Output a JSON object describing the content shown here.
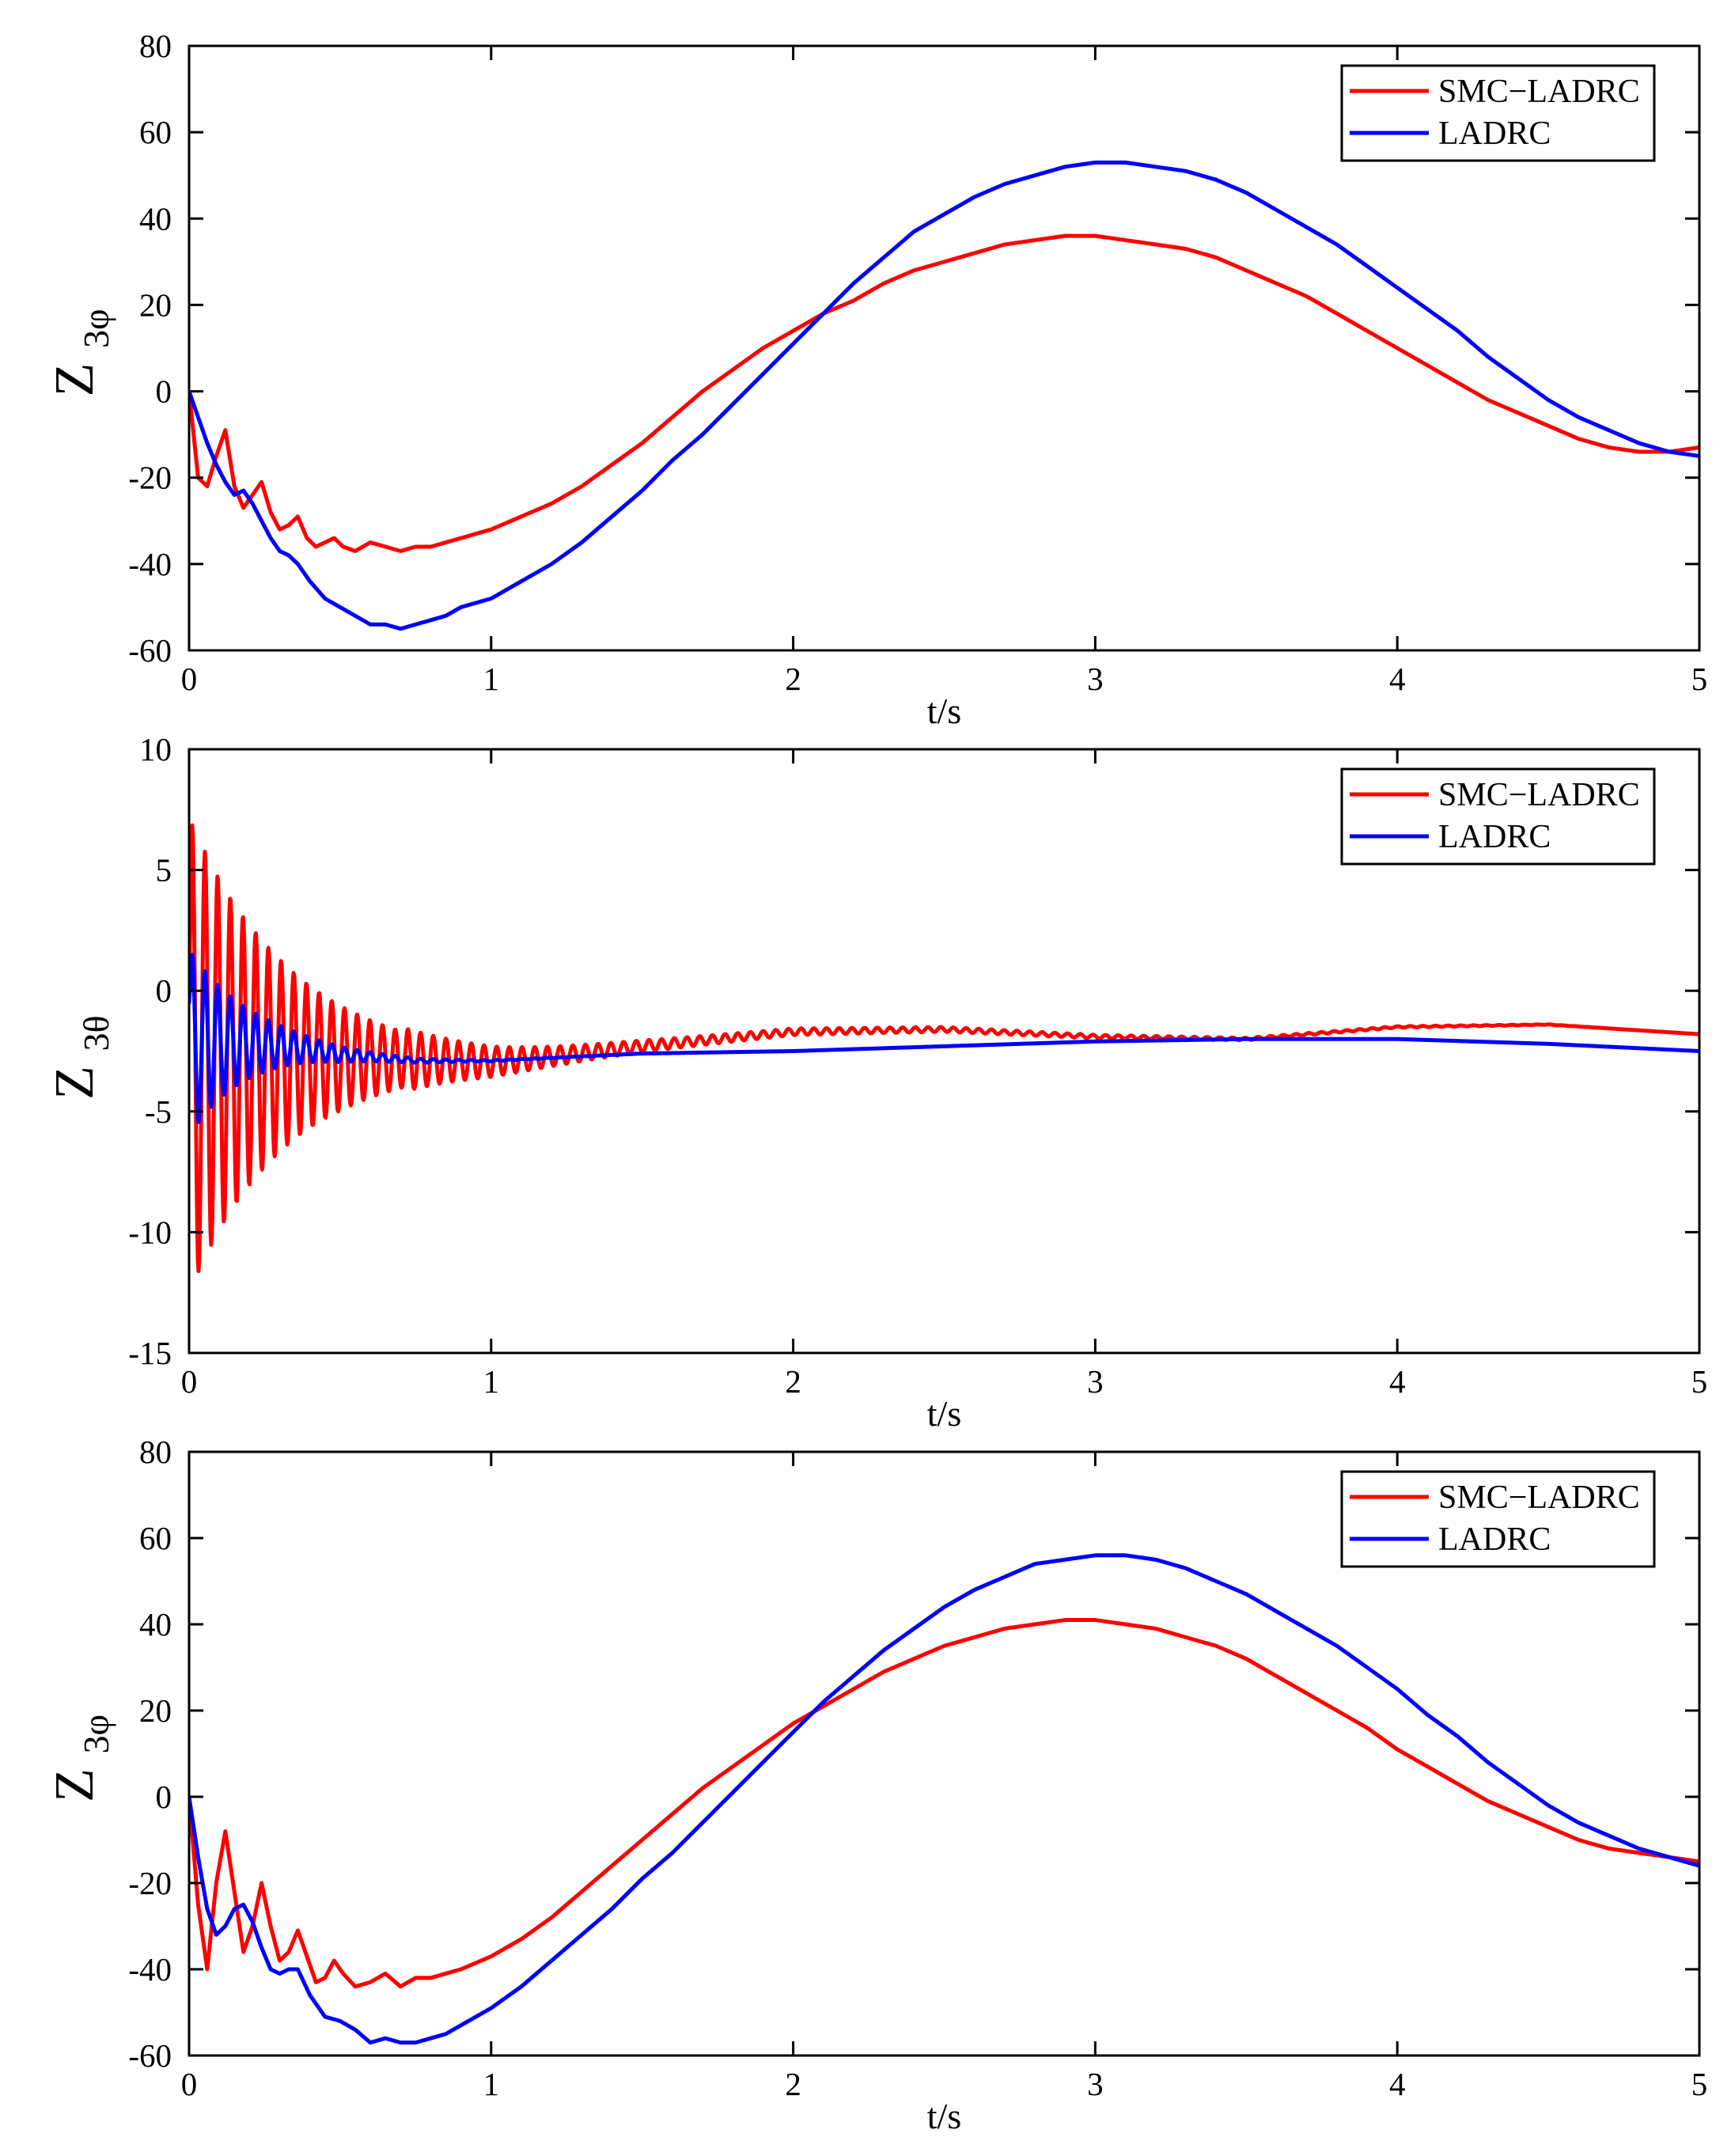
{
  "chart_data": [
    {
      "type": "line",
      "xlabel": "t/s",
      "ylabel": "Z",
      "ylabel_sub": "3φ",
      "xlim": [
        0,
        5
      ],
      "ylim": [
        -60,
        80
      ],
      "xticks": [
        "0",
        "1",
        "2",
        "3",
        "4",
        "5"
      ],
      "yticks": [
        "80",
        "60",
        "40",
        "20",
        "0",
        "-20",
        "-40",
        "-60"
      ],
      "legend": [
        "SMC−LADRC",
        "LADRC"
      ],
      "legend_position": "top-right",
      "grid": false,
      "series": [
        {
          "name": "SMC−LADRC",
          "color": "#ff0000",
          "x": [
            0,
            0.03,
            0.06,
            0.09,
            0.12,
            0.15,
            0.18,
            0.21,
            0.24,
            0.27,
            0.3,
            0.33,
            0.36,
            0.39,
            0.42,
            0.45,
            0.48,
            0.51,
            0.55,
            0.6,
            0.65,
            0.7,
            0.75,
            0.8,
            0.85,
            0.9,
            1.0,
            1.1,
            1.2,
            1.3,
            1.4,
            1.5,
            1.6,
            1.7,
            1.8,
            1.9,
            2.0,
            2.1,
            2.2,
            2.3,
            2.4,
            2.5,
            2.6,
            2.7,
            2.8,
            2.9,
            3.0,
            3.1,
            3.2,
            3.3,
            3.4,
            3.5,
            3.6,
            3.7,
            3.8,
            3.9,
            4.0,
            4.1,
            4.2,
            4.3,
            4.4,
            4.5,
            4.6,
            4.7,
            4.8,
            4.9,
            5.0
          ],
          "values": [
            0,
            -20,
            -22,
            -15,
            -9,
            -22,
            -27,
            -24,
            -21,
            -28,
            -32,
            -31,
            -29,
            -34,
            -36,
            -35,
            -34,
            -36,
            -37,
            -35,
            -36,
            -37,
            -36,
            -36,
            -35,
            -34,
            -32,
            -29,
            -26,
            -22,
            -17,
            -12,
            -6,
            0,
            5,
            10,
            14,
            18,
            21,
            25,
            28,
            30,
            32,
            34,
            35,
            36,
            36,
            35,
            34,
            33,
            31,
            28,
            25,
            22,
            18,
            14,
            10,
            6,
            2,
            -2,
            -5,
            -8,
            -11,
            -13,
            -14,
            -14,
            -13
          ]
        },
        {
          "name": "LADRC",
          "color": "#0000ff",
          "x": [
            0,
            0.03,
            0.06,
            0.09,
            0.12,
            0.15,
            0.18,
            0.21,
            0.24,
            0.27,
            0.3,
            0.33,
            0.36,
            0.4,
            0.45,
            0.5,
            0.55,
            0.6,
            0.65,
            0.7,
            0.75,
            0.8,
            0.85,
            0.9,
            1.0,
            1.1,
            1.2,
            1.3,
            1.4,
            1.5,
            1.6,
            1.7,
            1.8,
            1.9,
            2.0,
            2.1,
            2.2,
            2.3,
            2.4,
            2.5,
            2.6,
            2.7,
            2.8,
            2.9,
            3.0,
            3.1,
            3.2,
            3.3,
            3.4,
            3.5,
            3.6,
            3.7,
            3.8,
            3.9,
            4.0,
            4.1,
            4.2,
            4.3,
            4.4,
            4.5,
            4.6,
            4.7,
            4.8,
            4.9,
            5.0
          ],
          "values": [
            0,
            -6,
            -12,
            -17,
            -21,
            -24,
            -23,
            -26,
            -30,
            -34,
            -37,
            -38,
            -40,
            -44,
            -48,
            -50,
            -52,
            -54,
            -54,
            -55,
            -54,
            -53,
            -52,
            -50,
            -48,
            -44,
            -40,
            -35,
            -29,
            -23,
            -16,
            -10,
            -3,
            4,
            11,
            18,
            25,
            31,
            37,
            41,
            45,
            48,
            50,
            52,
            53,
            53,
            52,
            51,
            49,
            46,
            42,
            38,
            34,
            29,
            24,
            19,
            14,
            8,
            3,
            -2,
            -6,
            -9,
            -12,
            -14,
            -15
          ]
        }
      ]
    },
    {
      "type": "line",
      "xlabel": "t/s",
      "ylabel": "Z",
      "ylabel_sub": "3θ",
      "xlim": [
        0,
        5
      ],
      "ylim": [
        -15,
        10
      ],
      "xticks": [
        "0",
        "1",
        "2",
        "3",
        "4",
        "5"
      ],
      "yticks": [
        "10",
        "5",
        "0",
        "-5",
        "-10",
        "-15"
      ],
      "legend": [
        "SMC−LADRC",
        "LADRC"
      ],
      "legend_position": "top-right",
      "grid": false,
      "series": [
        {
          "name": "SMC−LADRC",
          "color": "#ff0000",
          "model": {
            "kind": "damped-oscillation",
            "start": 0.0,
            "initial_peak": 6.9,
            "initial_trough": -12.2,
            "oscillation_period": 0.042,
            "decay_time": 0.33,
            "settle_time": 1.2,
            "ripple_amplitude": 0.15,
            "trend": {
              "x": [
                0,
                0.5,
                1.0,
                1.5,
                2.0,
                2.5,
                3.0,
                3.5,
                4.0,
                4.5,
                5.0
              ],
              "values": [
                -2.5,
                -3.0,
                -3.0,
                -2.3,
                -1.7,
                -1.6,
                -1.9,
                -2.0,
                -1.5,
                -1.4,
                -1.8
              ]
            }
          }
        },
        {
          "name": "LADRC",
          "color": "#0000ff",
          "model": {
            "kind": "damped-oscillation",
            "start": -0.5,
            "initial_peak": 1.5,
            "initial_trough": -5.8,
            "oscillation_period": 0.042,
            "decay_time": 0.2,
            "settle_time": 0.75,
            "ripple_amplitude": 0.0,
            "trend": {
              "x": [
                0,
                0.5,
                1.0,
                1.5,
                2.0,
                2.5,
                3.0,
                3.5,
                4.0,
                4.5,
                5.0
              ],
              "values": [
                -2.0,
                -2.9,
                -2.9,
                -2.6,
                -2.5,
                -2.3,
                -2.1,
                -2.0,
                -2.0,
                -2.2,
                -2.5
              ]
            }
          }
        }
      ]
    },
    {
      "type": "line",
      "xlabel": "t/s",
      "ylabel": "Z",
      "ylabel_sub": "3φ",
      "xlim": [
        0,
        5
      ],
      "ylim": [
        -60,
        80
      ],
      "xticks": [
        "0",
        "1",
        "2",
        "3",
        "4",
        "5"
      ],
      "yticks": [
        "80",
        "60",
        "40",
        "20",
        "0",
        "-20",
        "-40",
        "-60"
      ],
      "legend": [
        "SMC−LADRC",
        "LADRC"
      ],
      "legend_position": "top-right",
      "grid": false,
      "series": [
        {
          "name": "SMC−LADRC",
          "color": "#ff0000",
          "x": [
            0,
            0.03,
            0.06,
            0.09,
            0.12,
            0.15,
            0.18,
            0.21,
            0.24,
            0.27,
            0.3,
            0.33,
            0.36,
            0.39,
            0.42,
            0.45,
            0.48,
            0.51,
            0.55,
            0.6,
            0.65,
            0.7,
            0.75,
            0.8,
            0.85,
            0.9,
            1.0,
            1.1,
            1.2,
            1.3,
            1.4,
            1.5,
            1.6,
            1.7,
            1.8,
            1.9,
            2.0,
            2.1,
            2.2,
            2.3,
            2.4,
            2.5,
            2.6,
            2.7,
            2.8,
            2.9,
            3.0,
            3.1,
            3.2,
            3.3,
            3.4,
            3.5,
            3.6,
            3.7,
            3.8,
            3.9,
            4.0,
            4.1,
            4.2,
            4.3,
            4.4,
            4.5,
            4.6,
            4.7,
            4.8,
            4.9,
            5.0
          ],
          "values": [
            0,
            -25,
            -40,
            -20,
            -8,
            -22,
            -36,
            -30,
            -20,
            -30,
            -38,
            -36,
            -31,
            -37,
            -43,
            -42,
            -38,
            -41,
            -44,
            -43,
            -41,
            -44,
            -42,
            -42,
            -41,
            -40,
            -37,
            -33,
            -28,
            -22,
            -16,
            -10,
            -4,
            2,
            7,
            12,
            17,
            21,
            25,
            29,
            32,
            35,
            37,
            39,
            40,
            41,
            41,
            40,
            39,
            37,
            35,
            32,
            28,
            24,
            20,
            16,
            11,
            7,
            3,
            -1,
            -4,
            -7,
            -10,
            -12,
            -13,
            -14,
            -15
          ]
        },
        {
          "name": "LADRC",
          "color": "#0000ff",
          "x": [
            0,
            0.03,
            0.06,
            0.09,
            0.12,
            0.15,
            0.18,
            0.21,
            0.24,
            0.27,
            0.3,
            0.33,
            0.36,
            0.4,
            0.45,
            0.5,
            0.55,
            0.6,
            0.65,
            0.7,
            0.75,
            0.8,
            0.85,
            0.9,
            1.0,
            1.1,
            1.2,
            1.3,
            1.4,
            1.5,
            1.6,
            1.7,
            1.8,
            1.9,
            2.0,
            2.1,
            2.2,
            2.3,
            2.4,
            2.5,
            2.6,
            2.7,
            2.8,
            2.9,
            3.0,
            3.1,
            3.2,
            3.3,
            3.4,
            3.5,
            3.6,
            3.7,
            3.8,
            3.9,
            4.0,
            4.1,
            4.2,
            4.3,
            4.4,
            4.5,
            4.6,
            4.7,
            4.8,
            4.9,
            5.0
          ],
          "values": [
            0,
            -14,
            -26,
            -32,
            -30,
            -26,
            -25,
            -29,
            -35,
            -40,
            -41,
            -40,
            -40,
            -46,
            -51,
            -52,
            -54,
            -57,
            -56,
            -57,
            -57,
            -56,
            -55,
            -53,
            -49,
            -44,
            -38,
            -32,
            -26,
            -19,
            -13,
            -6,
            1,
            8,
            15,
            22,
            28,
            34,
            39,
            44,
            48,
            51,
            54,
            55,
            56,
            56,
            55,
            53,
            50,
            47,
            43,
            39,
            35,
            30,
            25,
            19,
            14,
            8,
            3,
            -2,
            -6,
            -9,
            -12,
            -14,
            -16
          ]
        }
      ]
    }
  ]
}
